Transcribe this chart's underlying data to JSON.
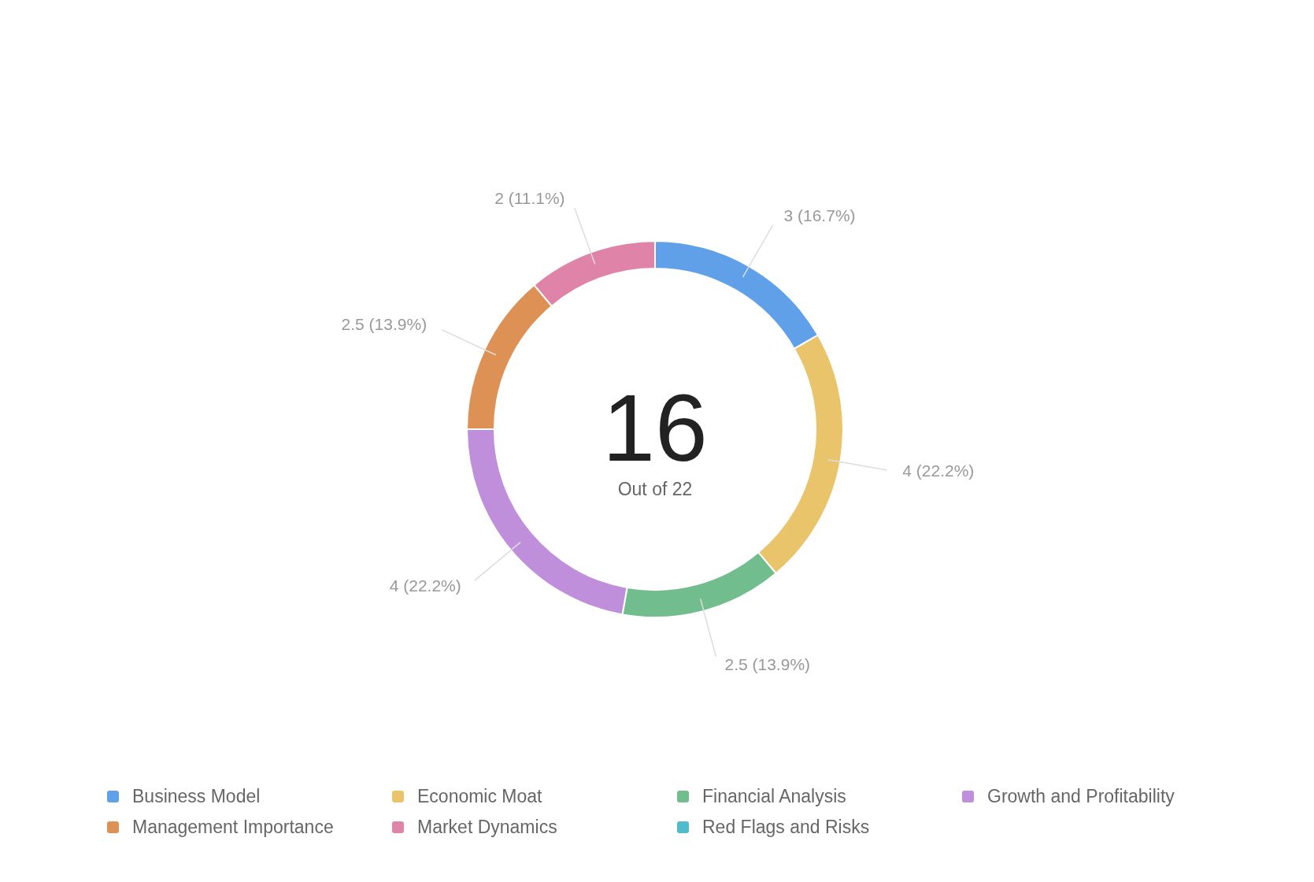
{
  "chart_data": {
    "type": "donut",
    "categories": [
      "Business Model",
      "Economic Moat",
      "Financial Analysis",
      "Growth and Profitability",
      "Management Importance",
      "Market Dynamics",
      "Red Flags and Risks"
    ],
    "values": [
      3,
      4,
      2.5,
      4,
      2.5,
      2,
      0
    ],
    "colors": [
      "#5fa0e8",
      "#e9c46a",
      "#72bd8e",
      "#bf8fdb",
      "#dd9155",
      "#e083a8",
      "#4fbbcc"
    ],
    "value_labels": [
      "3 (16.7%)",
      "4 (22.2%)",
      "2.5 (13.9%)",
      "4 (22.2%)",
      "2.5 (13.9%)",
      "2 (11.1%)",
      null
    ],
    "annotations": [
      "16",
      "Out of 22"
    ],
    "legend": "bottom"
  }
}
